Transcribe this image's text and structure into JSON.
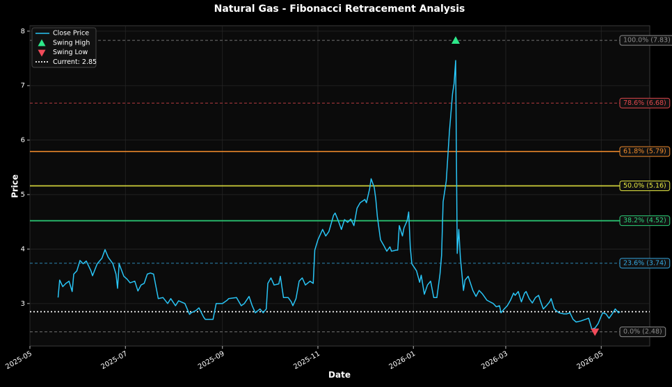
{
  "chart_data": {
    "type": "line",
    "title": "Natural Gas - Fibonacci Retracement Analysis",
    "x_label": "Date",
    "y_label": "Price",
    "xlim": [
      "2025-05",
      "2026-06"
    ],
    "xticks": [
      "2025-05",
      "2025-07",
      "2025-09",
      "2025-11",
      "2026-01",
      "2026-03",
      "2026-05"
    ],
    "ylim": [
      2.22,
      8.1
    ],
    "yticks": [
      3,
      4,
      5,
      6,
      7,
      8
    ],
    "grid": true,
    "legend": "upper left",
    "series": [
      {
        "name": "Close Price",
        "color": "#29c5f6",
        "x": [
          "2025-05-19",
          "2025-05-20",
          "2025-05-22",
          "2025-05-24",
          "2025-05-26",
          "2025-05-28",
          "2025-05-29",
          "2025-05-31",
          "2025-06-02",
          "2025-06-04",
          "2025-06-06",
          "2025-06-09",
          "2025-06-10",
          "2025-06-13",
          "2025-06-16",
          "2025-06-18",
          "2025-06-20",
          "2025-06-23",
          "2025-06-25",
          "2025-06-26",
          "2025-06-27",
          "2025-06-30",
          "2025-07-02",
          "2025-07-04",
          "2025-07-07",
          "2025-07-09",
          "2025-07-11",
          "2025-07-13",
          "2025-07-15",
          "2025-07-17",
          "2025-07-19",
          "2025-07-22",
          "2025-07-25",
          "2025-07-28",
          "2025-07-30",
          "2025-08-02",
          "2025-08-04",
          "2025-08-08",
          "2025-08-11",
          "2025-08-12",
          "2025-08-15",
          "2025-08-17",
          "2025-08-20",
          "2025-08-21",
          "2025-08-26",
          "2025-08-28",
          "2025-09-01",
          "2025-09-04",
          "2025-09-05",
          "2025-09-10",
          "2025-09-13",
          "2025-09-15",
          "2025-09-18",
          "2025-09-20",
          "2025-09-22",
          "2025-09-25",
          "2025-09-27",
          "2025-09-29",
          "2025-09-30",
          "2025-10-02",
          "2025-10-04",
          "2025-10-07",
          "2025-10-08",
          "2025-10-10",
          "2025-10-13",
          "2025-10-15",
          "2025-10-16",
          "2025-10-18",
          "2025-10-20",
          "2025-10-22",
          "2025-10-24",
          "2025-10-27",
          "2025-10-29",
          "2025-10-30",
          "2025-11-01",
          "2025-11-04",
          "2025-11-06",
          "2025-11-08",
          "2025-11-11",
          "2025-11-12",
          "2025-11-14",
          "2025-11-16",
          "2025-11-18",
          "2025-11-20",
          "2025-11-22",
          "2025-11-24",
          "2025-11-26",
          "2025-11-28",
          "2025-12-01",
          "2025-12-02",
          "2025-12-04",
          "2025-12-05",
          "2025-12-07",
          "2025-12-08",
          "2025-12-09",
          "2025-12-11",
          "2025-12-13",
          "2025-12-15",
          "2025-12-17",
          "2025-12-18",
          "2025-12-21",
          "2025-12-22",
          "2025-12-23",
          "2025-12-25",
          "2025-12-26",
          "2025-12-28",
          "2025-12-29",
          "2025-12-30",
          "2025-12-31",
          "2026-01-03",
          "2026-01-05",
          "2026-01-06",
          "2026-01-08",
          "2026-01-10",
          "2026-01-12",
          "2026-01-14",
          "2026-01-16",
          "2026-01-18",
          "2026-01-19",
          "2026-01-20",
          "2026-01-22",
          "2026-01-24",
          "2026-01-26",
          "2026-01-27",
          "2026-01-28",
          "2026-01-29",
          "2026-01-30",
          "2026-01-31",
          "2026-02-02",
          "2026-02-03",
          "2026-02-05",
          "2026-02-08",
          "2026-02-10",
          "2026-02-12",
          "2026-02-14",
          "2026-02-17",
          "2026-02-19",
          "2026-02-21",
          "2026-02-23",
          "2026-02-25",
          "2026-02-26",
          "2026-02-28",
          "2026-03-02",
          "2026-03-04",
          "2026-03-06",
          "2026-03-07",
          "2026-03-09",
          "2026-03-11",
          "2026-03-13",
          "2026-03-14",
          "2026-03-16",
          "2026-03-18",
          "2026-03-20",
          "2026-03-22",
          "2026-03-23",
          "2026-03-25",
          "2026-03-27",
          "2026-03-29",
          "2026-03-30",
          "2026-04-01",
          "2026-04-04",
          "2026-04-07",
          "2026-04-09",
          "2026-04-11",
          "2026-04-13",
          "2026-04-15",
          "2026-04-18",
          "2026-04-21",
          "2026-04-23",
          "2026-04-25",
          "2026-04-27",
          "2026-04-29",
          "2026-05-01",
          "2026-05-02",
          "2026-05-04",
          "2026-05-06",
          "2026-05-08",
          "2026-05-10",
          "2026-05-12",
          "2026-05-13"
        ],
        "values": [
          3.11,
          3.43,
          3.31,
          3.37,
          3.41,
          3.22,
          3.54,
          3.6,
          3.79,
          3.73,
          3.78,
          3.6,
          3.51,
          3.73,
          3.83,
          3.99,
          3.85,
          3.73,
          3.54,
          3.28,
          3.73,
          3.5,
          3.45,
          3.38,
          3.41,
          3.23,
          3.34,
          3.37,
          3.54,
          3.56,
          3.54,
          3.09,
          3.11,
          3.0,
          3.09,
          2.96,
          3.05,
          3.0,
          2.8,
          2.83,
          2.87,
          2.92,
          2.75,
          2.71,
          2.71,
          3.0,
          3.0,
          3.06,
          3.09,
          3.11,
          2.96,
          3.0,
          3.13,
          2.96,
          2.83,
          2.9,
          2.83,
          2.9,
          3.37,
          3.47,
          3.34,
          3.36,
          3.5,
          3.11,
          3.11,
          3.03,
          2.96,
          3.09,
          3.41,
          3.47,
          3.34,
          3.41,
          3.37,
          3.98,
          4.17,
          4.36,
          4.24,
          4.32,
          4.62,
          4.66,
          4.52,
          4.36,
          4.54,
          4.49,
          4.55,
          4.43,
          4.75,
          4.85,
          4.91,
          4.85,
          5.1,
          5.29,
          5.13,
          4.91,
          4.59,
          4.17,
          4.07,
          3.96,
          4.04,
          3.96,
          3.98,
          3.98,
          4.43,
          4.24,
          4.39,
          4.52,
          4.68,
          4.04,
          3.73,
          3.6,
          3.39,
          3.52,
          3.17,
          3.34,
          3.41,
          3.11,
          3.11,
          3.54,
          3.88,
          4.87,
          5.25,
          6.15,
          6.85,
          7.04,
          7.46,
          3.92,
          4.36,
          3.85,
          3.24,
          3.43,
          3.5,
          3.24,
          3.13,
          3.24,
          3.18,
          3.06,
          3.03,
          3.0,
          2.94,
          2.96,
          2.83,
          2.9,
          2.96,
          3.06,
          3.19,
          3.15,
          3.22,
          3.03,
          3.19,
          3.22,
          3.09,
          3.01,
          3.11,
          3.15,
          3.06,
          2.9,
          2.96,
          3.03,
          3.09,
          2.9,
          2.83,
          2.81,
          2.81,
          2.83,
          2.71,
          2.66,
          2.68,
          2.71,
          2.73,
          2.53,
          2.55,
          2.63,
          2.77,
          2.83,
          2.81,
          2.73,
          2.81,
          2.9,
          2.83,
          2.85
        ]
      }
    ],
    "markers": [
      {
        "name": "Swing High",
        "color": "#2ee88a",
        "shape": "triangle-up",
        "x": "2026-01-28",
        "value": 7.83
      },
      {
        "name": "Swing Low",
        "color": "#f24b5a",
        "shape": "triangle-down",
        "x": "2026-04-27",
        "value": 2.48
      }
    ],
    "current": {
      "name": "Current: 2.85",
      "value": 2.85,
      "color": "#ffffff"
    },
    "levels": [
      {
        "label": "100.0% (7.83)",
        "value": 7.83,
        "color": "#8c8c8c",
        "dashed": true
      },
      {
        "label": "78.6% (6.68)",
        "value": 6.68,
        "color": "#e0474c",
        "dashed": true
      },
      {
        "label": "61.8% (5.79)",
        "value": 5.79,
        "color": "#ee8a2c",
        "dashed": false
      },
      {
        "label": "50.0% (5.16)",
        "value": 5.16,
        "color": "#e4e640",
        "dashed": false
      },
      {
        "label": "38.2% (4.52)",
        "value": 4.52,
        "color": "#2ed37a",
        "dashed": false
      },
      {
        "label": "23.6% (3.74)",
        "value": 3.74,
        "color": "#35a7e0",
        "dashed": true
      },
      {
        "label": "0.0% (2.48)",
        "value": 2.48,
        "color": "#8c8c8c",
        "dashed": true
      }
    ]
  }
}
